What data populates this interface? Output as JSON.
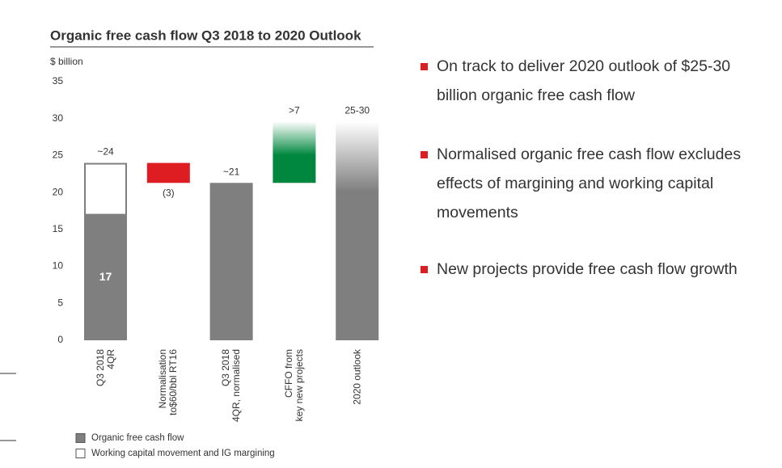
{
  "chart_data": {
    "type": "waterfall",
    "title": "Organic free cash flow Q3 2018 to 2020 Outlook",
    "y_label": "$ billion",
    "categories": [
      "Q3 2018\n4QR",
      "Normalisation\nto$60/bbl RT16",
      "Q3 2018\n4QR, normalised",
      "CFFO from\nkey new projects",
      "2020 outlook"
    ],
    "series": [
      {
        "name": "Organic free cash flow",
        "color": "#7f7f7f",
        "values": [
          17,
          null,
          21.3,
          null,
          29.6
        ],
        "value_labels": [
          "17",
          null,
          "~21",
          null,
          "25-30"
        ]
      },
      {
        "name": "Working capital movement and IG margining",
        "color": "#ffffff",
        "values": [
          7,
          null,
          null,
          null,
          null
        ]
      }
    ],
    "changes": {
      "values": [
        null,
        -2.7,
        null,
        8.3,
        null
      ],
      "value_labels": [
        null,
        "(3)",
        null,
        ">7",
        null
      ],
      "colors": [
        null,
        "#dd1d21",
        null,
        "#00873f",
        null
      ]
    },
    "annotations": [
      "~24"
    ],
    "faded": [
      false,
      false,
      false,
      true,
      true
    ],
    "ylim": [
      0,
      35
    ],
    "yticks": [
      0,
      5,
      10,
      15,
      20,
      25,
      30,
      35
    ],
    "grid": false
  },
  "bullets": [
    "On track to deliver 2020 outlook of $25-30 billion organic free cash flow",
    "Normalised organic free cash flow excludes effects of margining and working capital movements",
    "New projects provide free cash flow growth"
  ]
}
